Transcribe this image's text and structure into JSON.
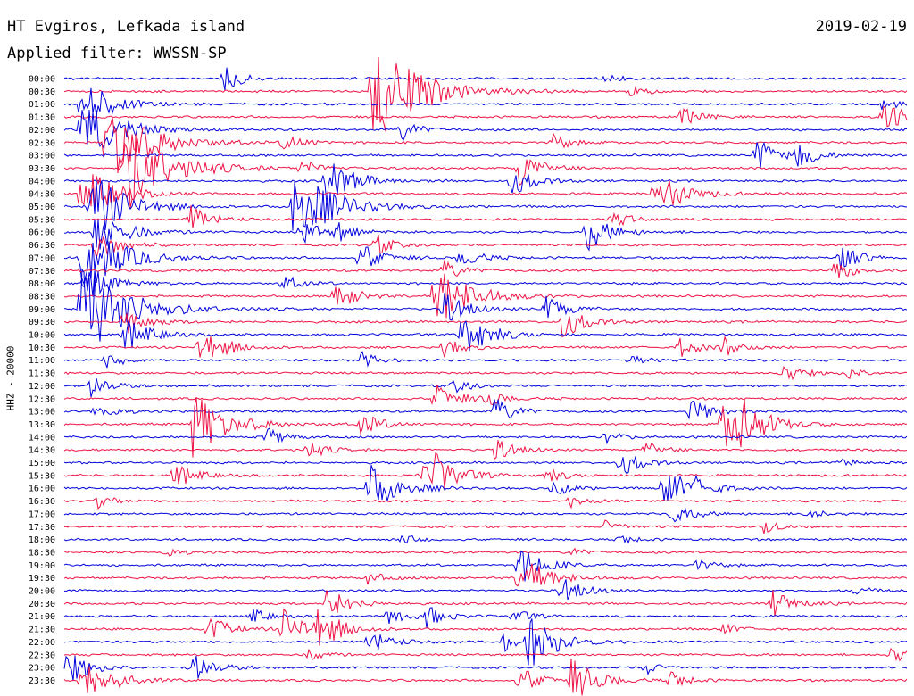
{
  "header": {
    "station": "HT Evgiros, Lefkada island",
    "filter_text": "Applied filter: WWSSN-SP",
    "date": "2019-02-19"
  },
  "colors": {
    "trace_even": "#0000dd",
    "trace_odd": "#ee1144"
  },
  "chart_data": {
    "type": "line",
    "title": "HT Evgiros, Lefkada island",
    "subtitle": "Applied filter: WWSSN-SP",
    "ylabel": "HHZ - 20000",
    "row_labels": [
      "00:00",
      "00:30",
      "01:00",
      "01:30",
      "02:00",
      "02:30",
      "03:00",
      "03:30",
      "04:00",
      "04:30",
      "05:00",
      "05:30",
      "06:00",
      "06:30",
      "07:00",
      "07:30",
      "08:00",
      "08:30",
      "09:00",
      "09:30",
      "10:00",
      "10:30",
      "11:00",
      "11:30",
      "12:00",
      "12:30",
      "13:00",
      "13:30",
      "14:00",
      "14:30",
      "15:00",
      "15:30",
      "16:00",
      "16:30",
      "17:00",
      "17:30",
      "18:00",
      "18:30",
      "19:00",
      "19:30",
      "20:00",
      "20:30",
      "21:00",
      "21:30",
      "22:00",
      "22:30",
      "23:00",
      "23:30"
    ],
    "trace_minutes": 30,
    "events": [
      {
        "row": 0,
        "t": 0.19,
        "amp": 14
      },
      {
        "row": 0,
        "t": 0.64,
        "amp": 6
      },
      {
        "row": 1,
        "t": 0.365,
        "amp": 62
      },
      {
        "row": 1,
        "t": 0.67,
        "amp": 7
      },
      {
        "row": 2,
        "t": 0.02,
        "amp": 30
      },
      {
        "row": 2,
        "t": 0.97,
        "amp": 8
      },
      {
        "row": 3,
        "t": 0.73,
        "amp": 12
      },
      {
        "row": 3,
        "t": 0.97,
        "amp": 22
      },
      {
        "row": 4,
        "t": 0.02,
        "amp": 40
      },
      {
        "row": 4,
        "t": 0.4,
        "amp": 12
      },
      {
        "row": 5,
        "t": 0.05,
        "amp": 52
      },
      {
        "row": 5,
        "t": 0.26,
        "amp": 12
      },
      {
        "row": 5,
        "t": 0.58,
        "amp": 10
      },
      {
        "row": 6,
        "t": 0.82,
        "amp": 20
      },
      {
        "row": 6,
        "t": 0.87,
        "amp": 14
      },
      {
        "row": 7,
        "t": 0.07,
        "amp": 55
      },
      {
        "row": 7,
        "t": 0.28,
        "amp": 10
      },
      {
        "row": 7,
        "t": 0.54,
        "amp": 20
      },
      {
        "row": 8,
        "t": 0.31,
        "amp": 28
      },
      {
        "row": 8,
        "t": 0.53,
        "amp": 18
      },
      {
        "row": 9,
        "t": 0.02,
        "amp": 35
      },
      {
        "row": 9,
        "t": 0.7,
        "amp": 28
      },
      {
        "row": 10,
        "t": 0.03,
        "amp": 42
      },
      {
        "row": 10,
        "t": 0.27,
        "amp": 48
      },
      {
        "row": 11,
        "t": 0.15,
        "amp": 16
      },
      {
        "row": 11,
        "t": 0.65,
        "amp": 10
      },
      {
        "row": 12,
        "t": 0.035,
        "amp": 30
      },
      {
        "row": 12,
        "t": 0.28,
        "amp": 15
      },
      {
        "row": 12,
        "t": 0.32,
        "amp": 12
      },
      {
        "row": 12,
        "t": 0.62,
        "amp": 22
      },
      {
        "row": 13,
        "t": 0.036,
        "amp": 20
      },
      {
        "row": 13,
        "t": 0.37,
        "amp": 12
      },
      {
        "row": 14,
        "t": 0.02,
        "amp": 45
      },
      {
        "row": 14,
        "t": 0.35,
        "amp": 18
      },
      {
        "row": 14,
        "t": 0.47,
        "amp": 13
      },
      {
        "row": 14,
        "t": 0.92,
        "amp": 16
      },
      {
        "row": 15,
        "t": 0.45,
        "amp": 12
      },
      {
        "row": 15,
        "t": 0.91,
        "amp": 14
      },
      {
        "row": 16,
        "t": 0.025,
        "amp": 22
      },
      {
        "row": 16,
        "t": 0.26,
        "amp": 10
      },
      {
        "row": 17,
        "t": 0.32,
        "amp": 18
      },
      {
        "row": 17,
        "t": 0.44,
        "amp": 40
      },
      {
        "row": 18,
        "t": 0.02,
        "amp": 58
      },
      {
        "row": 18,
        "t": 0.45,
        "amp": 20
      },
      {
        "row": 18,
        "t": 0.57,
        "amp": 16
      },
      {
        "row": 19,
        "t": 0.07,
        "amp": 18
      },
      {
        "row": 19,
        "t": 0.59,
        "amp": 20
      },
      {
        "row": 20,
        "t": 0.07,
        "amp": 22
      },
      {
        "row": 20,
        "t": 0.47,
        "amp": 28
      },
      {
        "row": 21,
        "t": 0.16,
        "amp": 24
      },
      {
        "row": 21,
        "t": 0.45,
        "amp": 12
      },
      {
        "row": 21,
        "t": 0.73,
        "amp": 12
      },
      {
        "row": 21,
        "t": 0.78,
        "amp": 12
      },
      {
        "row": 22,
        "t": 0.05,
        "amp": 10
      },
      {
        "row": 22,
        "t": 0.35,
        "amp": 10
      },
      {
        "row": 22,
        "t": 0.67,
        "amp": 8
      },
      {
        "row": 23,
        "t": 0.85,
        "amp": 14
      },
      {
        "row": 23,
        "t": 0.93,
        "amp": 8
      },
      {
        "row": 24,
        "t": 0.03,
        "amp": 14
      },
      {
        "row": 24,
        "t": 0.46,
        "amp": 10
      },
      {
        "row": 25,
        "t": 0.44,
        "amp": 18
      },
      {
        "row": 25,
        "t": 0.5,
        "amp": 10
      },
      {
        "row": 26,
        "t": 0.035,
        "amp": 12
      },
      {
        "row": 26,
        "t": 0.51,
        "amp": 16
      },
      {
        "row": 26,
        "t": 0.74,
        "amp": 18
      },
      {
        "row": 27,
        "t": 0.15,
        "amp": 40
      },
      {
        "row": 27,
        "t": 0.35,
        "amp": 15
      },
      {
        "row": 27,
        "t": 0.78,
        "amp": 30
      },
      {
        "row": 27,
        "t": 0.8,
        "amp": 22
      },
      {
        "row": 28,
        "t": 0.24,
        "amp": 12
      },
      {
        "row": 28,
        "t": 0.64,
        "amp": 8
      },
      {
        "row": 29,
        "t": 0.29,
        "amp": 10
      },
      {
        "row": 29,
        "t": 0.51,
        "amp": 14
      },
      {
        "row": 29,
        "t": 0.69,
        "amp": 10
      },
      {
        "row": 30,
        "t": 0.66,
        "amp": 16
      },
      {
        "row": 30,
        "t": 0.92,
        "amp": 6
      },
      {
        "row": 31,
        "t": 0.13,
        "amp": 16
      },
      {
        "row": 31,
        "t": 0.42,
        "amp": 14
      },
      {
        "row": 31,
        "t": 0.44,
        "amp": 22
      },
      {
        "row": 31,
        "t": 0.57,
        "amp": 10
      },
      {
        "row": 32,
        "t": 0.36,
        "amp": 30
      },
      {
        "row": 32,
        "t": 0.58,
        "amp": 10
      },
      {
        "row": 32,
        "t": 0.71,
        "amp": 26
      },
      {
        "row": 32,
        "t": 0.75,
        "amp": 8
      },
      {
        "row": 33,
        "t": 0.04,
        "amp": 8
      },
      {
        "row": 33,
        "t": 0.6,
        "amp": 8
      },
      {
        "row": 34,
        "t": 0.72,
        "amp": 14
      },
      {
        "row": 34,
        "t": 0.88,
        "amp": 8
      },
      {
        "row": 35,
        "t": 0.64,
        "amp": 10
      },
      {
        "row": 35,
        "t": 0.83,
        "amp": 8
      },
      {
        "row": 36,
        "t": 0.4,
        "amp": 6
      },
      {
        "row": 36,
        "t": 0.66,
        "amp": 6
      },
      {
        "row": 37,
        "t": 0.12,
        "amp": 6
      },
      {
        "row": 37,
        "t": 0.6,
        "amp": 6
      },
      {
        "row": 38,
        "t": 0.54,
        "amp": 22
      },
      {
        "row": 38,
        "t": 0.75,
        "amp": 8
      },
      {
        "row": 39,
        "t": 0.54,
        "amp": 28
      },
      {
        "row": 39,
        "t": 0.36,
        "amp": 8
      },
      {
        "row": 40,
        "t": 0.59,
        "amp": 16
      },
      {
        "row": 40,
        "t": 0.94,
        "amp": 6
      },
      {
        "row": 41,
        "t": 0.31,
        "amp": 20
      },
      {
        "row": 41,
        "t": 0.84,
        "amp": 16
      },
      {
        "row": 42,
        "t": 0.22,
        "amp": 10
      },
      {
        "row": 42,
        "t": 0.38,
        "amp": 12
      },
      {
        "row": 42,
        "t": 0.43,
        "amp": 12
      },
      {
        "row": 42,
        "t": 0.53,
        "amp": 10
      },
      {
        "row": 43,
        "t": 0.17,
        "amp": 16
      },
      {
        "row": 43,
        "t": 0.26,
        "amp": 22
      },
      {
        "row": 43,
        "t": 0.3,
        "amp": 22
      },
      {
        "row": 43,
        "t": 0.78,
        "amp": 8
      },
      {
        "row": 44,
        "t": 0.36,
        "amp": 16
      },
      {
        "row": 44,
        "t": 0.55,
        "amp": 30
      },
      {
        "row": 44,
        "t": 0.52,
        "amp": 12
      },
      {
        "row": 45,
        "t": 0.29,
        "amp": 8
      },
      {
        "row": 45,
        "t": 0.98,
        "amp": 12
      },
      {
        "row": 46,
        "t": 0.0,
        "amp": 22
      },
      {
        "row": 46,
        "t": 0.15,
        "amp": 18
      },
      {
        "row": 46,
        "t": 0.69,
        "amp": 8
      },
      {
        "row": 47,
        "t": 0.02,
        "amp": 30
      },
      {
        "row": 47,
        "t": 0.54,
        "amp": 16
      },
      {
        "row": 47,
        "t": 0.6,
        "amp": 26
      },
      {
        "row": 47,
        "t": 0.72,
        "amp": 10
      }
    ]
  }
}
